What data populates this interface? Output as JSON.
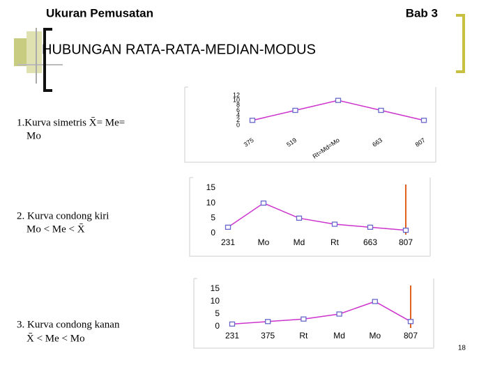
{
  "header": {
    "topic": "Ukuran Pemusatan",
    "chapter": "Bab 3"
  },
  "title": "HUBUNGAN RATA-RATA-MEDIAN-MODUS",
  "items": [
    {
      "lines": [
        "1.Kurva simetris X̄= Me=",
        "Mo"
      ]
    },
    {
      "lines": [
        "2. Kurva condong kiri",
        "Mo < Me < X̄"
      ]
    },
    {
      "lines": [
        "3. Kurva condong kanan",
        "X̄ < Me < Mo"
      ]
    }
  ],
  "page_number": "18",
  "chart_data": [
    {
      "type": "line",
      "categories": [
        "375",
        "519",
        "Rt=Md=Mo",
        "663",
        "807"
      ],
      "values": [
        2,
        6,
        10,
        6,
        2
      ],
      "color": "#cc33cc",
      "marker_color": "#6666cc",
      "ylim": [
        0,
        12
      ],
      "yticks": [
        0,
        2,
        4,
        6,
        8,
        10,
        12
      ]
    },
    {
      "type": "line",
      "categories": [
        "231",
        "Mo",
        "Md",
        "Rt",
        "663",
        "807"
      ],
      "values": [
        2,
        10,
        5,
        3,
        2,
        1
      ],
      "color": "#cc33cc",
      "marker_color": "#6666cc",
      "ylim": [
        0,
        15
      ],
      "yticks": [
        0,
        5,
        10,
        15
      ]
    },
    {
      "type": "line",
      "categories": [
        "231",
        "375",
        "Rt",
        "Md",
        "Mo",
        "807"
      ],
      "values": [
        1,
        2,
        3,
        5,
        10,
        2
      ],
      "color": "#cc33cc",
      "marker_color": "#6666cc",
      "ylim": [
        0,
        15
      ],
      "yticks": [
        0,
        5,
        10,
        15
      ]
    }
  ]
}
